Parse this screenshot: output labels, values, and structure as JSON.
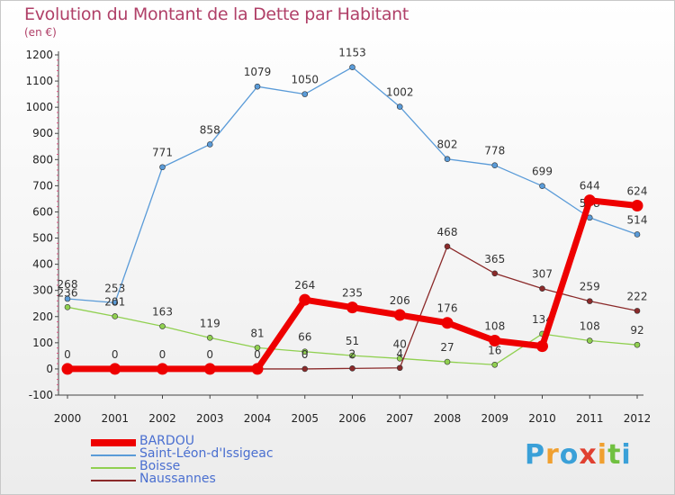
{
  "title": "Evolution du Montant de la Dette par Habitant",
  "subtitle": "(en €)",
  "logo": {
    "text": "Proxiti",
    "colors": [
      "#3aa0d8",
      "#f0a030",
      "#3aa0d8",
      "#e04030",
      "#f0a030",
      "#70c040",
      "#3aa0d8"
    ]
  },
  "chart_data": {
    "type": "line",
    "x": [
      "2000",
      "2001",
      "2002",
      "2003",
      "2004",
      "2005",
      "2006",
      "2007",
      "2008",
      "2009",
      "2010",
      "2011",
      "2012"
    ],
    "ylim": [
      -100,
      1200
    ],
    "yticks": [
      -100,
      0,
      100,
      200,
      300,
      400,
      500,
      600,
      700,
      800,
      900,
      1000,
      1100,
      1200
    ],
    "grid": false,
    "legend": "bottom-left",
    "series": [
      {
        "name": "Saint-Léon-d'Issigeac",
        "color": "#5a9bd8",
        "values": [
          268,
          253,
          771,
          858,
          1079,
          1050,
          1153,
          1002,
          802,
          778,
          699,
          578,
          514
        ],
        "labels": [
          "268",
          "253",
          "771",
          "858",
          "1079",
          "1050",
          "1153",
          "1002",
          "802",
          "778",
          "699",
          "578",
          "514"
        ]
      },
      {
        "name": "Boisse",
        "color": "#90d050",
        "values": [
          236,
          201,
          163,
          119,
          81,
          66,
          51,
          40,
          27,
          16,
          134,
          108,
          92
        ],
        "labels": [
          "236",
          "201",
          "163",
          "119",
          "81",
          "66",
          "51",
          "40",
          "27",
          "16",
          "134",
          "108",
          "92"
        ]
      },
      {
        "name": "Naussannes",
        "color": "#8b2a2a",
        "values": [
          0,
          0,
          0,
          0,
          0,
          0,
          2,
          4,
          468,
          365,
          307,
          259,
          222
        ],
        "labels": [
          "",
          "",
          "",
          "",
          "",
          "0",
          "2",
          "4",
          "468",
          "365",
          "307",
          "259",
          "222"
        ]
      },
      {
        "name": "BARDOU",
        "color": "#ee0000",
        "values": [
          0,
          0,
          0,
          0,
          0,
          264,
          235,
          206,
          176,
          108,
          87,
          644,
          624
        ],
        "labels": [
          "0",
          "0",
          "0",
          "0",
          "0",
          "264",
          "235",
          "206",
          "176",
          "108",
          "",
          "644",
          "624"
        ]
      }
    ],
    "legend_order": [
      "BARDOU",
      "Saint-Léon-d'Issigeac",
      "Boisse",
      "Naussannes"
    ]
  }
}
